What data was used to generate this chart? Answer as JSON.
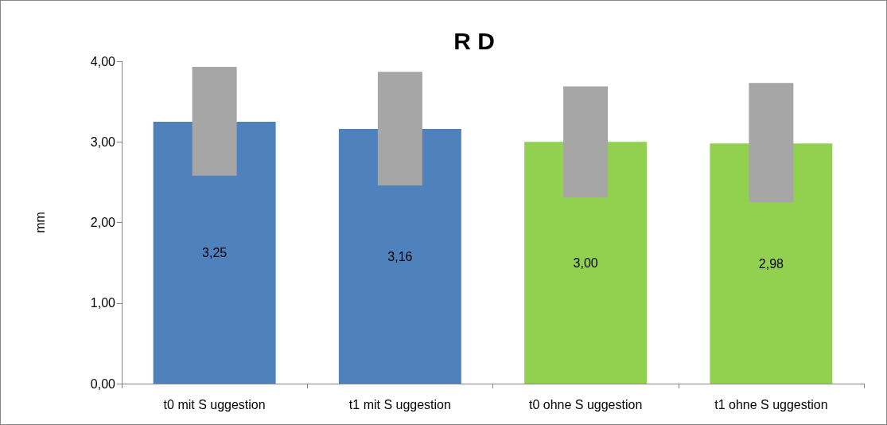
{
  "chart_data": {
    "type": "bar",
    "title": "R D",
    "ylabel": "mm",
    "categories": [
      "t0 mit S uggestion",
      "t1 mit S uggestion",
      "t0 ohne S uggestion",
      "t1 ohne S uggestion"
    ],
    "series": [
      {
        "values": [
          3.25,
          3.16,
          3.0,
          2.98
        ],
        "colors": [
          "#4f81bd",
          "#4f81bd",
          "#92d050",
          "#92d050"
        ],
        "value_labels": [
          "3,25",
          "3,16",
          "3,00",
          "2,98"
        ]
      },
      {
        "values": [
          1.35,
          1.41,
          1.38,
          1.48
        ],
        "base": [
          2.58,
          2.46,
          2.31,
          2.25
        ],
        "color": "#a6a6a6"
      }
    ],
    "ylim": [
      0,
      4
    ],
    "yticks": [
      {
        "value": 0,
        "label": "0,00"
      },
      {
        "value": 1,
        "label": "1,00"
      },
      {
        "value": 2,
        "label": "2,00"
      },
      {
        "value": 3,
        "label": "3,00"
      },
      {
        "value": 4,
        "label": "4,00"
      }
    ],
    "grid": false
  }
}
